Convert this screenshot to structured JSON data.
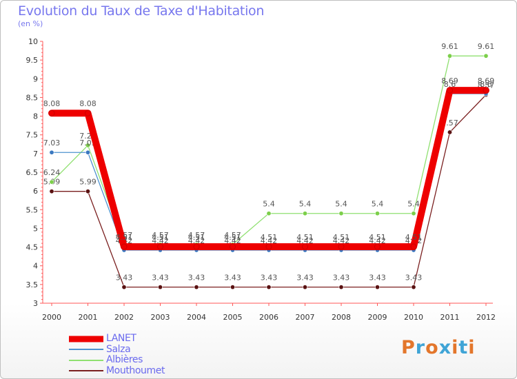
{
  "header": {
    "title": "Evolution du Taux de Taxe d'Habitation",
    "unit": "(en %)"
  },
  "brand": {
    "letters": [
      "P",
      "r",
      "o",
      "x",
      "i",
      "t",
      "i"
    ],
    "colors": [
      "#e3762b",
      "#3fa4d6",
      "#e3762b",
      "#3fa4d6",
      "#e3762b",
      "#3fa4d6",
      "#e3762b"
    ]
  },
  "chart_data": {
    "type": "line",
    "title": "Evolution du Taux de Taxe d'Habitation",
    "ylabel": "(en %)",
    "xlabel": "",
    "ylim": [
      3,
      10
    ],
    "yticks": [
      "3",
      "3.5",
      "4",
      "4.5",
      "5",
      "5.5",
      "6",
      "6.5",
      "7",
      "7.5",
      "8",
      "8.5",
      "9",
      "9.5",
      "10"
    ],
    "grid": false,
    "legend_position": "bottom-left",
    "x": [
      "2000",
      "2001",
      "2002",
      "2003",
      "2004",
      "2005",
      "2006",
      "2007",
      "2008",
      "2009",
      "2010",
      "2011",
      "2012"
    ],
    "series": [
      {
        "name": "Mouthoumet",
        "color": "#7a1f1f",
        "marker": "#5a1212",
        "values": [
          5.99,
          5.99,
          3.43,
          3.43,
          3.43,
          3.43,
          3.43,
          3.43,
          3.43,
          3.43,
          3.43,
          7.57,
          8.57
        ],
        "labels": [
          "5.99",
          "5.99",
          "3.43",
          "3.43",
          "3.43",
          "3.43",
          "3.43",
          "3.43",
          "3.43",
          "3.43",
          "3.43",
          "7.57",
          "8.57"
        ]
      },
      {
        "name": "Albières",
        "color": "#8fe070",
        "marker": "#7ccf4a",
        "values": [
          6.24,
          7.22,
          4.57,
          4.57,
          4.57,
          4.57,
          5.4,
          5.4,
          5.4,
          5.4,
          5.4,
          9.61,
          9.61
        ],
        "labels": [
          "6.24",
          "7.22",
          "4.57",
          "4.57",
          "4.57",
          "4.57",
          "5.4",
          "5.4",
          "5.4",
          "5.4",
          "5.4",
          "9.61",
          "9.61"
        ]
      },
      {
        "name": "Salza",
        "color": "#4d92cf",
        "marker": "#3a78c0",
        "values": [
          7.03,
          7.03,
          4.42,
          4.42,
          4.42,
          4.42,
          4.42,
          4.42,
          4.42,
          4.42,
          4.42,
          8.6,
          8.6
        ],
        "labels": [
          "7.03",
          "7.03",
          "4.42",
          "4.42",
          "4.42",
          "4.42",
          "4.42",
          "4.42",
          "4.42",
          "4.42",
          "4.42",
          "8.6",
          "8.6"
        ]
      },
      {
        "name": "LANET",
        "color": "#ee0000",
        "marker": "#ee0000",
        "values": [
          8.08,
          8.08,
          4.51,
          4.51,
          4.51,
          4.51,
          4.51,
          4.51,
          4.51,
          4.51,
          4.51,
          8.69,
          8.69
        ],
        "labels": [
          "8.08",
          "8.08",
          "4.51",
          "4.51",
          "4.51",
          "4.51",
          "4.51",
          "4.51",
          "4.51",
          "4.51",
          "4.51",
          "8.69",
          "8.69"
        ]
      }
    ],
    "legend": [
      "LANET",
      "Salza",
      "Albières",
      "Mouthoumet"
    ]
  }
}
